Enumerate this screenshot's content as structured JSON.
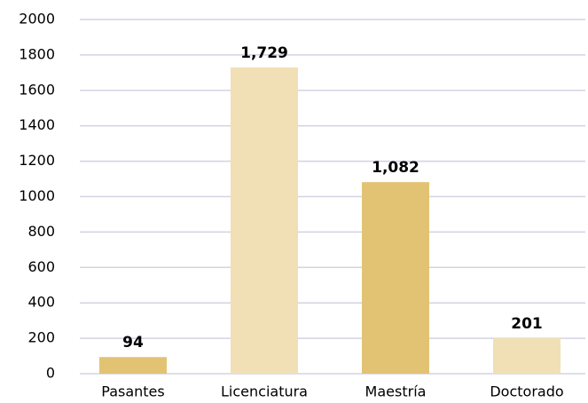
{
  "chart_data": {
    "type": "bar",
    "categories": [
      "Pasantes",
      "Licenciatura",
      "Maestría",
      "Doctorado"
    ],
    "values": [
      94,
      1729,
      1082,
      201
    ],
    "value_labels": [
      "94",
      "1,729",
      "1,082",
      "201"
    ],
    "colors": [
      "#e2c374",
      "#f1dfb5",
      "#e2c374",
      "#f1dfb5"
    ],
    "ylim": [
      0,
      2000
    ],
    "yticks": [
      0,
      200,
      400,
      600,
      800,
      1000,
      1200,
      1400,
      1600,
      1800,
      2000
    ],
    "grid": true
  }
}
